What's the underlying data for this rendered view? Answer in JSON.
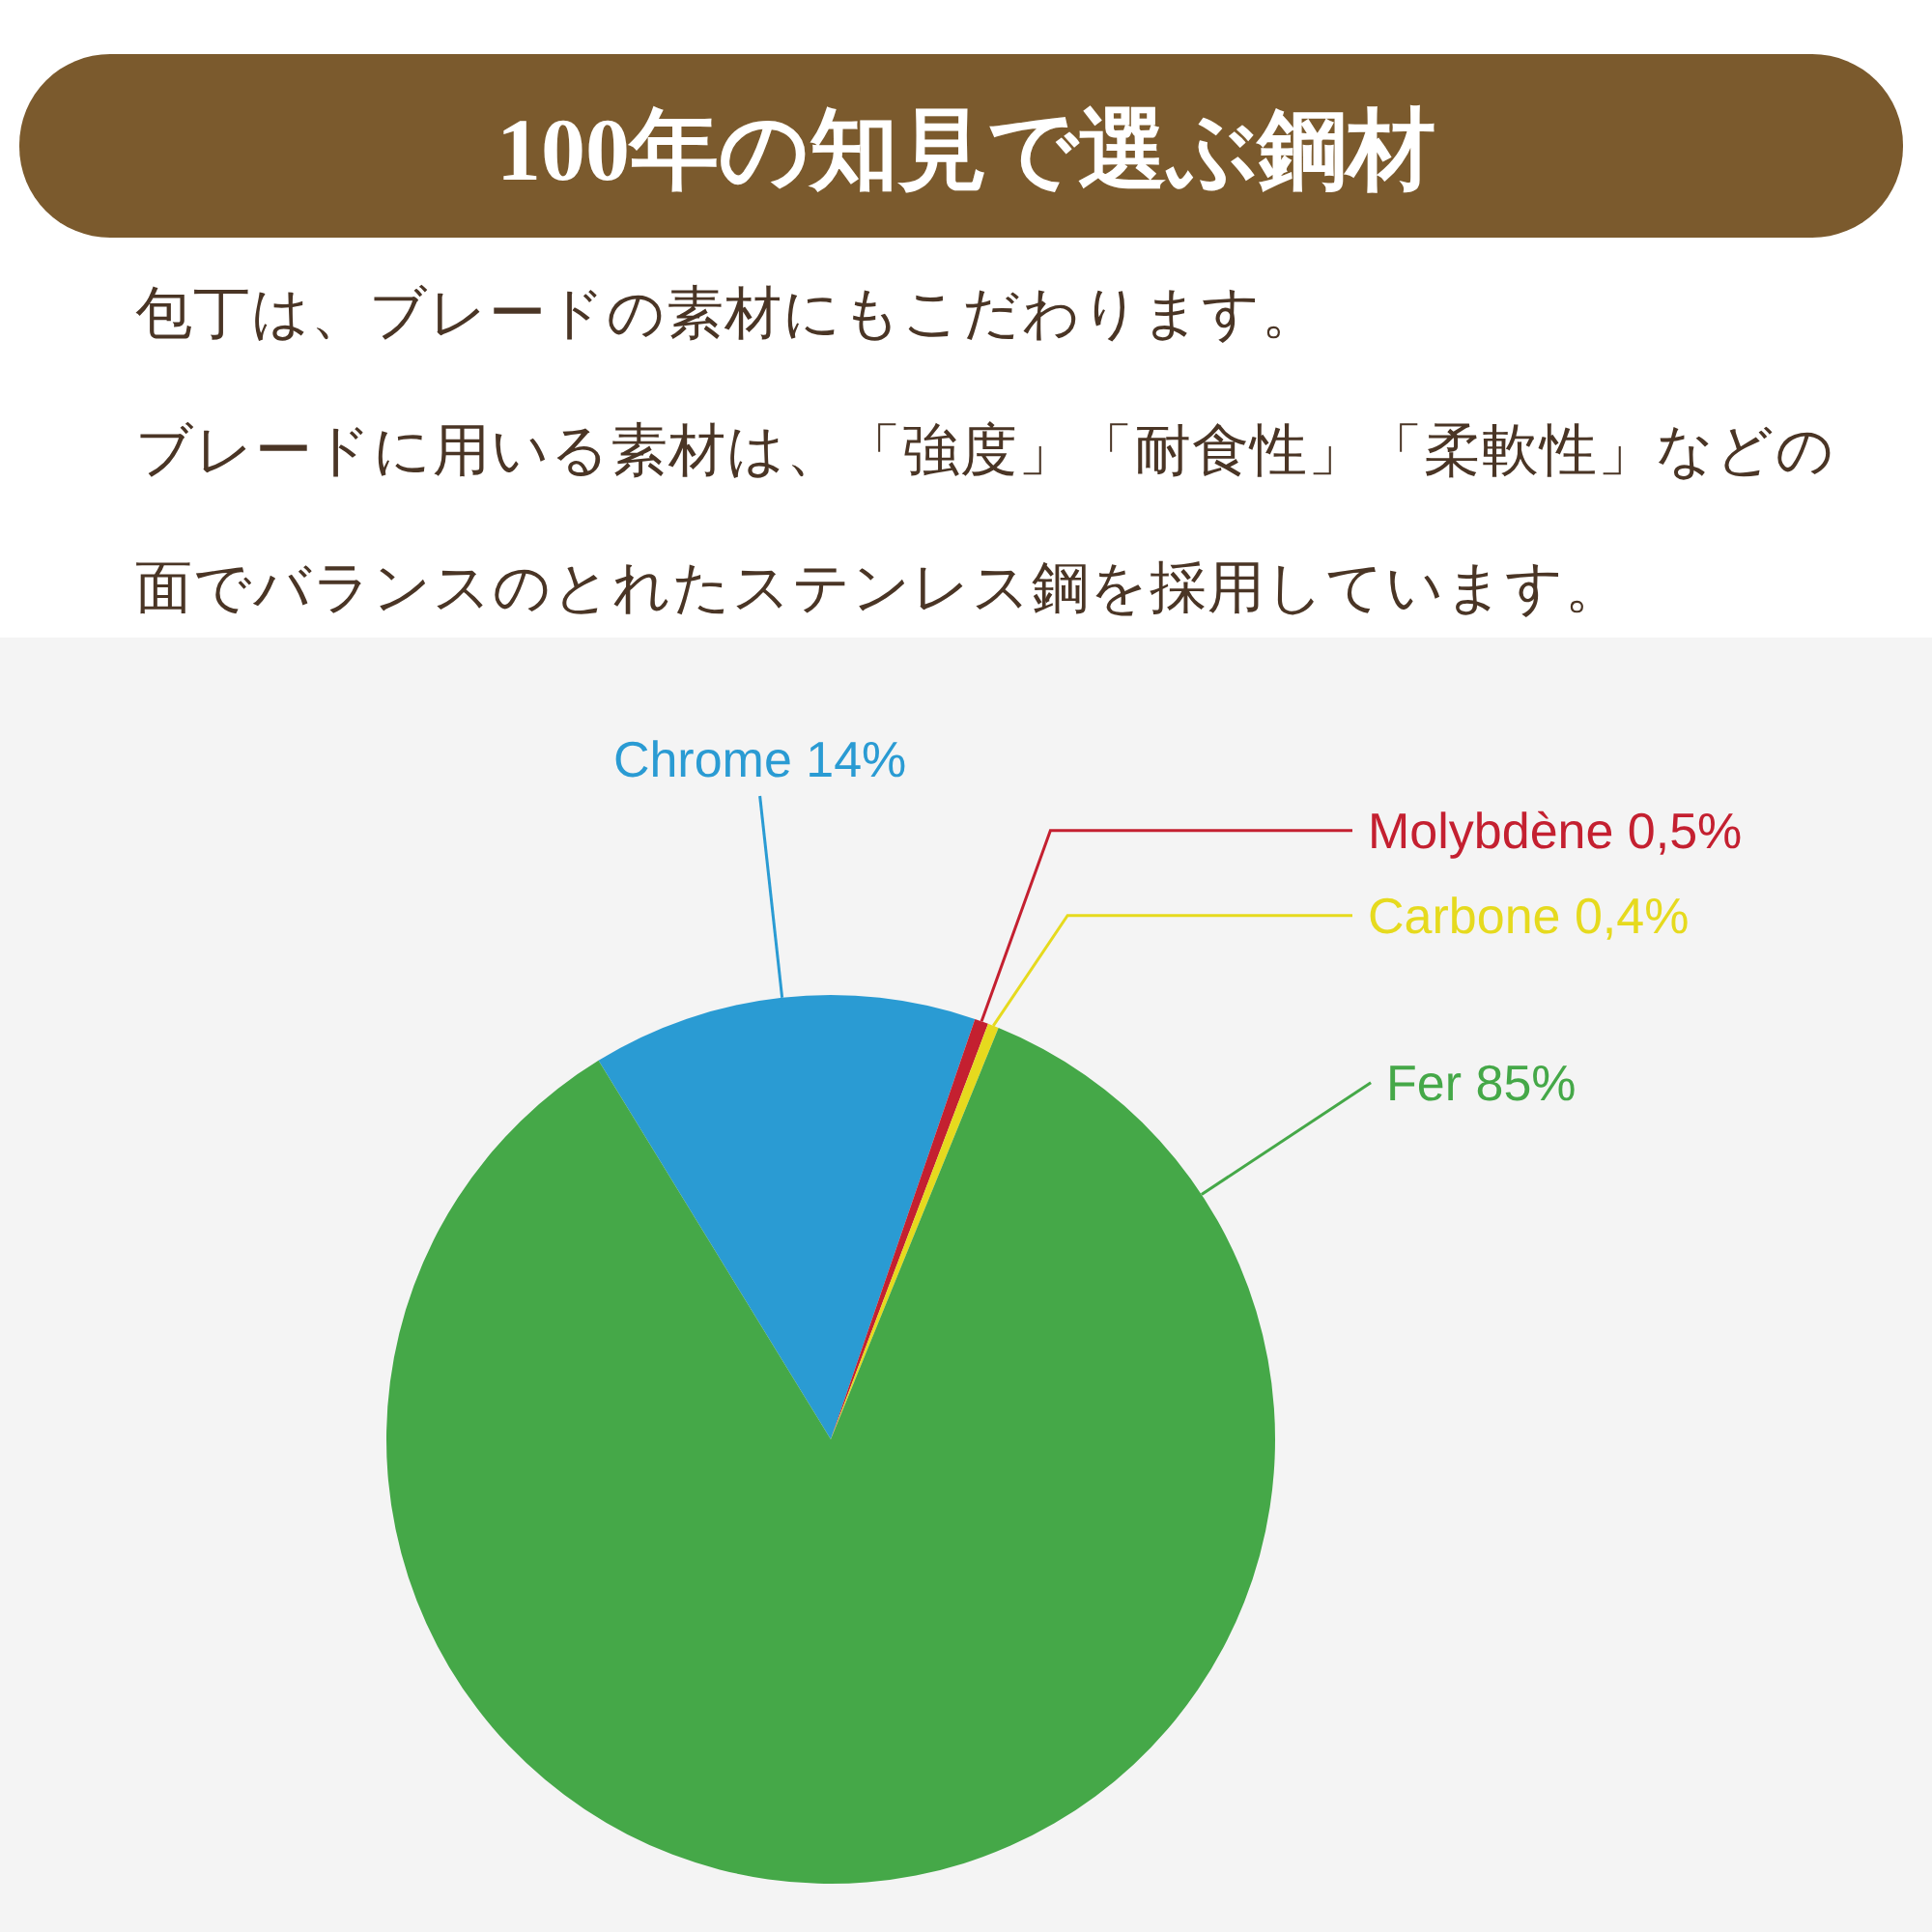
{
  "chart_data": {
    "type": "pie",
    "title": "100年の知見で選ぶ鋼材",
    "subtitle": "包丁は、ブレードの素材にもこだわります。ブレードに用いる素材は、「強度」「耐食性」「柔軟性」などの面でバランスのとれたステンレス鋼を採用しています。",
    "categories": [
      "Chrome",
      "Molybdène",
      "Carbone",
      "Fer"
    ],
    "values": [
      14,
      0.5,
      0.4,
      85
    ],
    "value_labels": [
      "14%",
      "0,5%",
      "0,4%",
      "85%"
    ],
    "colors": [
      "#2a9bd3",
      "#c42030",
      "#e6da1e",
      "#45a848"
    ]
  }
}
